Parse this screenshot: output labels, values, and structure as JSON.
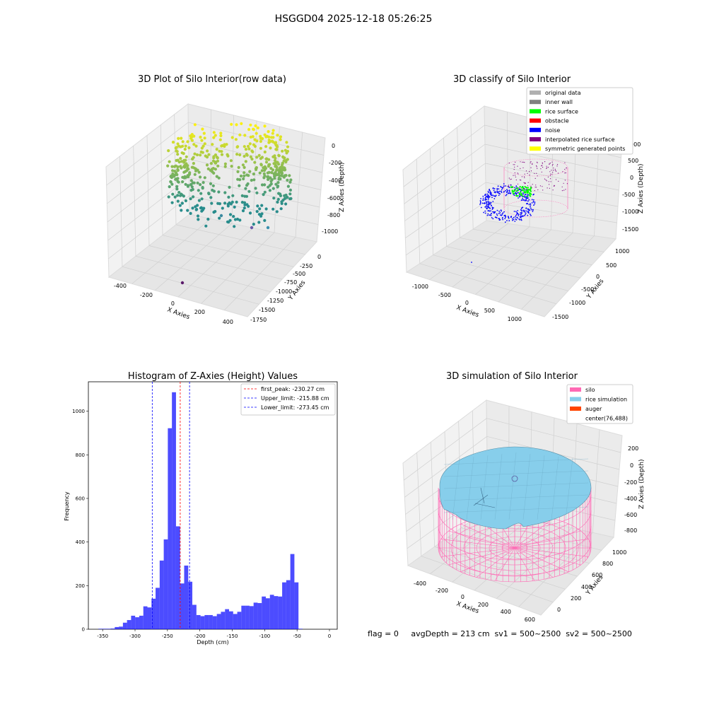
{
  "page": {
    "suptitle": "HSGGD04 2025-12-18 05:26:25",
    "status_line": "flag = 0     avgDepth = 213 cm  sv1 = 500~2500  sv2 = 500~2500"
  },
  "panels": {
    "raw": {
      "title": "3D Plot of Silo Interior(row data)",
      "xlabel": "X Axies",
      "ylabel": "Y Axies",
      "zlabel": "Z Axies (Depth)",
      "xticks": [
        "-400",
        "-200",
        "0",
        "200",
        "400"
      ],
      "yticks": [
        "0",
        "-250",
        "-500",
        "-750",
        "-1000",
        "-1250",
        "-1500",
        "-1750"
      ],
      "zticks": [
        "0",
        "-200",
        "-400",
        "-600",
        "-800",
        "-1000"
      ]
    },
    "classify": {
      "title": "3D classify of Silo Interior",
      "xlabel": "X Axies",
      "ylabel": "Y Axies",
      "zlabel": "Z Axies (Depth)",
      "xticks": [
        "-1000",
        "-500",
        "0",
        "500",
        "1000"
      ],
      "yticks": [
        "1000",
        "500",
        "0",
        "-500",
        "-1000",
        "-1500"
      ],
      "zticks": [
        "1000",
        "500",
        "0",
        "-500",
        "-1000",
        "-1500"
      ],
      "legend": [
        {
          "label": "original data",
          "color": "#b0b0b0"
        },
        {
          "label": "inner wall",
          "color": "#808080"
        },
        {
          "label": "rice surface",
          "color": "#00ff00"
        },
        {
          "label": "obstacle",
          "color": "#ff0000"
        },
        {
          "label": "noise",
          "color": "#0000ff"
        },
        {
          "label": "interpolated rice surface",
          "color": "#800080"
        },
        {
          "label": "symmetric generated points",
          "color": "#ffff00"
        }
      ]
    },
    "simulation": {
      "title": "3D simulation of Silo Interior",
      "xlabel": "X Axies",
      "ylabel": "Y Axies",
      "zlabel": "Z Axies (Depth)",
      "xticks": [
        "-400",
        "-200",
        "0",
        "200",
        "400",
        "600"
      ],
      "yticks": [
        "0",
        "200",
        "400",
        "600",
        "800",
        "1000"
      ],
      "zticks": [
        "200",
        "0",
        "-200",
        "-400",
        "-600",
        "-800"
      ],
      "legend": [
        {
          "label": "silo",
          "color": "#ff69b4"
        },
        {
          "label": "rice simulation",
          "color": "#87ceeb"
        },
        {
          "label": "auger",
          "color": "#ff4500"
        },
        {
          "label": "center(76,488)",
          "color": ""
        }
      ]
    }
  },
  "chart_data": {
    "type": "bar",
    "title": "Histogram of Z-Axies (Height) Values",
    "xlabel": "Depth (cm)",
    "ylabel": "Frequency",
    "xlim": [
      -372,
      12
    ],
    "ylim": [
      0,
      1135
    ],
    "xticks": [
      -350,
      -300,
      -250,
      -200,
      -150,
      -100,
      -50,
      0
    ],
    "yticks": [
      0,
      200,
      400,
      600,
      800,
      1000
    ],
    "bin_edges_start": -356.5,
    "bin_width": 6.3,
    "values": [
      2,
      2,
      2,
      3,
      10,
      12,
      30,
      42,
      62,
      55,
      62,
      105,
      100,
      140,
      190,
      315,
      412,
      922,
      1087,
      472,
      210,
      292,
      218,
      112,
      65,
      60,
      65,
      65,
      60,
      70,
      80,
      92,
      82,
      70,
      80,
      108,
      108,
      106,
      122,
      120,
      150,
      142,
      158,
      152,
      150,
      215,
      225,
      345,
      215,
      2
    ],
    "color": "#0000ff",
    "lines": [
      {
        "label": "first_peak: -230.27 cm",
        "x": -230.27,
        "color": "#ff0000"
      },
      {
        "label": "Upper_limit: -215.88 cm",
        "x": -215.88,
        "color": "#0000ff"
      },
      {
        "label": "Lower_limit: -273.45 cm",
        "x": -273.45,
        "color": "#0000ff"
      }
    ]
  }
}
